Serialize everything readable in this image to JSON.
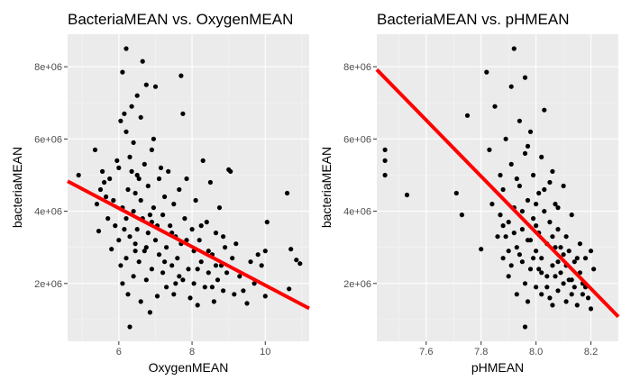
{
  "chart_data": [
    {
      "type": "scatter",
      "title": "BacteriaMEAN vs. OxygenMEAN",
      "xlabel": "OxygenMEAN",
      "ylabel": "bacteriaMEAN",
      "xlim": [
        4.6,
        11.2
      ],
      "ylim": [
        400000,
        8900000
      ],
      "xticks": [
        6,
        8,
        10
      ],
      "xtick_labels": [
        "6",
        "8",
        "10"
      ],
      "yticks": [
        2000000,
        4000000,
        6000000,
        8000000
      ],
      "ytick_labels": [
        "2e+06",
        "4e+06",
        "6e+06",
        "8e+06"
      ],
      "grid": true,
      "fit_line": {
        "x": [
          4.6,
          11.2
        ],
        "y": [
          4830000,
          1310000
        ]
      },
      "points": [
        [
          4.9,
          5000000
        ],
        [
          5.35,
          5700000
        ],
        [
          5.4,
          4200000
        ],
        [
          5.45,
          3450000
        ],
        [
          5.5,
          4600000
        ],
        [
          5.55,
          5100000
        ],
        [
          5.6,
          4800000
        ],
        [
          5.65,
          4400000
        ],
        [
          5.7,
          3800000
        ],
        [
          5.75,
          4900000
        ],
        [
          5.8,
          2950000
        ],
        [
          5.85,
          4300000
        ],
        [
          5.9,
          3600000
        ],
        [
          5.95,
          5400000
        ],
        [
          6.0,
          5200000
        ],
        [
          6.0,
          3200000
        ],
        [
          6.05,
          2500000
        ],
        [
          6.05,
          6500000
        ],
        [
          6.1,
          7850000
        ],
        [
          6.1,
          4100000
        ],
        [
          6.1,
          2000000
        ],
        [
          6.15,
          6700000
        ],
        [
          6.2,
          8500000
        ],
        [
          6.2,
          6200000
        ],
        [
          6.2,
          3800000
        ],
        [
          6.2,
          2700000
        ],
        [
          6.25,
          1700000
        ],
        [
          6.25,
          4600000
        ],
        [
          6.3,
          5500000
        ],
        [
          6.3,
          3300000
        ],
        [
          6.3,
          800000
        ],
        [
          6.35,
          6900000
        ],
        [
          6.4,
          5900000
        ],
        [
          6.4,
          4000000
        ],
        [
          6.4,
          2200000
        ],
        [
          6.45,
          3100000
        ],
        [
          6.45,
          4500000
        ],
        [
          6.5,
          7200000
        ],
        [
          6.5,
          5000000
        ],
        [
          6.5,
          3500000
        ],
        [
          6.55,
          2600000
        ],
        [
          6.6,
          6600000
        ],
        [
          6.6,
          4300000
        ],
        [
          6.6,
          1500000
        ],
        [
          6.65,
          8150000
        ],
        [
          6.65,
          3800000
        ],
        [
          6.7,
          5300000
        ],
        [
          6.7,
          2900000
        ],
        [
          6.75,
          7500000
        ],
        [
          6.75,
          2100000
        ],
        [
          6.8,
          4700000
        ],
        [
          6.8,
          3400000
        ],
        [
          6.85,
          1200000
        ],
        [
          6.9,
          5700000
        ],
        [
          6.9,
          3700000
        ],
        [
          6.9,
          2400000
        ],
        [
          6.95,
          6000000
        ],
        [
          6.95,
          4100000
        ],
        [
          7.0,
          7450000
        ],
        [
          7.0,
          3200000
        ],
        [
          7.05,
          1650000
        ],
        [
          7.1,
          4900000
        ],
        [
          7.1,
          2800000
        ],
        [
          7.15,
          5200000
        ],
        [
          7.2,
          3900000
        ],
        [
          7.2,
          2300000
        ],
        [
          7.25,
          4400000
        ],
        [
          7.3,
          3000000
        ],
        [
          7.3,
          1900000
        ],
        [
          7.35,
          5100000
        ],
        [
          7.4,
          3600000
        ],
        [
          7.45,
          2500000
        ],
        [
          7.5,
          4200000
        ],
        [
          7.5,
          1700000
        ],
        [
          7.55,
          3300000
        ],
        [
          7.6,
          2700000
        ],
        [
          7.65,
          4600000
        ],
        [
          7.7,
          7750000
        ],
        [
          7.7,
          3100000
        ],
        [
          7.75,
          6700000
        ],
        [
          7.75,
          2100000
        ],
        [
          7.8,
          3800000
        ],
        [
          7.85,
          4900000
        ],
        [
          7.9,
          2400000
        ],
        [
          7.95,
          1600000
        ],
        [
          8.0,
          3500000
        ],
        [
          8.05,
          2900000
        ],
        [
          8.1,
          4300000
        ],
        [
          8.15,
          1400000
        ],
        [
          8.2,
          3200000
        ],
        [
          8.25,
          2600000
        ],
        [
          8.3,
          5400000
        ],
        [
          8.35,
          1900000
        ],
        [
          8.4,
          3700000
        ],
        [
          8.45,
          2300000
        ],
        [
          8.5,
          4800000
        ],
        [
          8.55,
          2800000
        ],
        [
          8.6,
          1500000
        ],
        [
          8.65,
          3400000
        ],
        [
          8.7,
          2100000
        ],
        [
          8.75,
          4100000
        ],
        [
          8.8,
          2500000
        ],
        [
          8.85,
          1800000
        ],
        [
          8.9,
          3000000
        ],
        [
          8.95,
          2300000
        ],
        [
          9.0,
          5150000
        ],
        [
          9.05,
          5100000
        ],
        [
          9.1,
          2700000
        ],
        [
          9.15,
          1700000
        ],
        [
          9.2,
          3100000
        ],
        [
          9.3,
          2200000
        ],
        [
          9.4,
          1800000
        ],
        [
          9.5,
          1450000
        ],
        [
          9.6,
          2600000
        ],
        [
          9.7,
          2000000
        ],
        [
          9.8,
          2800000
        ],
        [
          9.9,
          2500000
        ],
        [
          10.0,
          2900000
        ],
        [
          10.0,
          1650000
        ],
        [
          10.05,
          3700000
        ],
        [
          10.6,
          4500000
        ],
        [
          10.65,
          1850000
        ],
        [
          10.7,
          2950000
        ],
        [
          10.85,
          2650000
        ],
        [
          10.95,
          2550000
        ],
        [
          6.35,
          5100000
        ],
        [
          6.45,
          2900000
        ],
        [
          6.55,
          4900000
        ],
        [
          6.75,
          3000000
        ],
        [
          7.05,
          3600000
        ],
        [
          7.25,
          2600000
        ],
        [
          7.45,
          3400000
        ],
        [
          7.65,
          2200000
        ],
        [
          7.85,
          3200000
        ],
        [
          8.05,
          2000000
        ],
        [
          8.25,
          3600000
        ],
        [
          8.45,
          2900000
        ],
        [
          8.65,
          2500000
        ],
        [
          8.85,
          3300000
        ],
        [
          6.15,
          3500000
        ],
        [
          6.85,
          3900000
        ],
        [
          7.55,
          2000000
        ],
        [
          8.15,
          2400000
        ],
        [
          8.55,
          1900000
        ]
      ]
    },
    {
      "type": "scatter",
      "title": "BacteriaMEAN vs. pHMEAN",
      "xlabel": "pHMEAN",
      "ylabel": "bacteriaMEAN",
      "xlim": [
        7.42,
        8.3
      ],
      "ylim": [
        400000,
        8900000
      ],
      "xticks": [
        7.6,
        7.8,
        8.0,
        8.2
      ],
      "xtick_labels": [
        "7.6",
        "7.8",
        "8.0",
        "8.2"
      ],
      "yticks": [
        2000000,
        4000000,
        6000000,
        8000000
      ],
      "ytick_labels": [
        "2e+06",
        "4e+06",
        "6e+06",
        "8e+06"
      ],
      "grid": true,
      "fit_line": {
        "x": [
          7.42,
          8.3
        ],
        "y": [
          7920000,
          1080000
        ]
      },
      "points": [
        [
          7.45,
          5700000
        ],
        [
          7.45,
          5400000
        ],
        [
          7.45,
          5000000
        ],
        [
          7.53,
          4450000
        ],
        [
          7.71,
          4500000
        ],
        [
          7.73,
          3900000
        ],
        [
          7.75,
          6650000
        ],
        [
          7.8,
          2950000
        ],
        [
          7.82,
          7850000
        ],
        [
          7.83,
          5700000
        ],
        [
          7.84,
          4200000
        ],
        [
          7.85,
          6900000
        ],
        [
          7.86,
          3300000
        ],
        [
          7.87,
          5000000
        ],
        [
          7.88,
          4600000
        ],
        [
          7.88,
          2700000
        ],
        [
          7.89,
          6000000
        ],
        [
          7.9,
          3700000
        ],
        [
          7.9,
          2200000
        ],
        [
          7.91,
          7450000
        ],
        [
          7.91,
          5300000
        ],
        [
          7.92,
          8500000
        ],
        [
          7.92,
          4100000
        ],
        [
          7.93,
          3000000
        ],
        [
          7.93,
          1700000
        ],
        [
          7.94,
          6500000
        ],
        [
          7.94,
          4700000
        ],
        [
          7.95,
          3500000
        ],
        [
          7.95,
          2600000
        ],
        [
          7.96,
          7700000
        ],
        [
          7.96,
          5600000
        ],
        [
          7.96,
          800000
        ],
        [
          7.97,
          4300000
        ],
        [
          7.97,
          3200000
        ],
        [
          7.98,
          6200000
        ],
        [
          7.98,
          2400000
        ],
        [
          7.99,
          5000000
        ],
        [
          7.99,
          3800000
        ],
        [
          8.0,
          2900000
        ],
        [
          8.0,
          1900000
        ],
        [
          8.01,
          4500000
        ],
        [
          8.01,
          3400000
        ],
        [
          8.02,
          5500000
        ],
        [
          8.02,
          2700000
        ],
        [
          8.03,
          6800000
        ],
        [
          8.03,
          4000000
        ],
        [
          8.04,
          3100000
        ],
        [
          8.04,
          2200000
        ],
        [
          8.05,
          1600000
        ],
        [
          8.05,
          3700000
        ],
        [
          8.06,
          5100000
        ],
        [
          8.06,
          2500000
        ],
        [
          8.07,
          4200000
        ],
        [
          8.07,
          3000000
        ],
        [
          8.08,
          1800000
        ],
        [
          8.08,
          3500000
        ],
        [
          8.09,
          2300000
        ],
        [
          8.1,
          4700000
        ],
        [
          8.1,
          2800000
        ],
        [
          8.11,
          1500000
        ],
        [
          8.11,
          3300000
        ],
        [
          8.12,
          2100000
        ],
        [
          8.13,
          3900000
        ],
        [
          8.13,
          1700000
        ],
        [
          8.14,
          2600000
        ],
        [
          8.15,
          1400000
        ],
        [
          8.16,
          3100000
        ],
        [
          8.17,
          2000000
        ],
        [
          8.18,
          2700000
        ],
        [
          8.19,
          1600000
        ],
        [
          8.2,
          2900000
        ],
        [
          8.2,
          1300000
        ],
        [
          8.21,
          2400000
        ],
        [
          7.88,
          3600000
        ],
        [
          7.9,
          2900000
        ],
        [
          7.92,
          3400000
        ],
        [
          7.94,
          2800000
        ],
        [
          7.96,
          2000000
        ],
        [
          7.98,
          3200000
        ],
        [
          8.0,
          3600000
        ],
        [
          8.02,
          2300000
        ],
        [
          8.04,
          1900000
        ],
        [
          8.06,
          3300000
        ],
        [
          8.08,
          2600000
        ],
        [
          8.1,
          2000000
        ],
        [
          8.12,
          2900000
        ],
        [
          8.14,
          1900000
        ],
        [
          8.16,
          2300000
        ],
        [
          8.18,
          1900000
        ],
        [
          7.97,
          5800000
        ],
        [
          8.0,
          4200000
        ],
        [
          8.03,
          4600000
        ],
        [
          8.05,
          4800000
        ],
        [
          8.08,
          4100000
        ],
        [
          7.95,
          4000000
        ],
        [
          7.93,
          4900000
        ],
        [
          7.89,
          3300000
        ],
        [
          7.91,
          2500000
        ],
        [
          7.99,
          2700000
        ],
        [
          8.01,
          2400000
        ],
        [
          8.07,
          2200000
        ],
        [
          8.09,
          3000000
        ],
        [
          8.11,
          2500000
        ],
        [
          8.13,
          2100000
        ],
        [
          8.15,
          2700000
        ],
        [
          8.17,
          1700000
        ],
        [
          7.97,
          1500000
        ],
        [
          7.87,
          3900000
        ],
        [
          8.02,
          1700000
        ],
        [
          8.06,
          1400000
        ]
      ]
    }
  ]
}
